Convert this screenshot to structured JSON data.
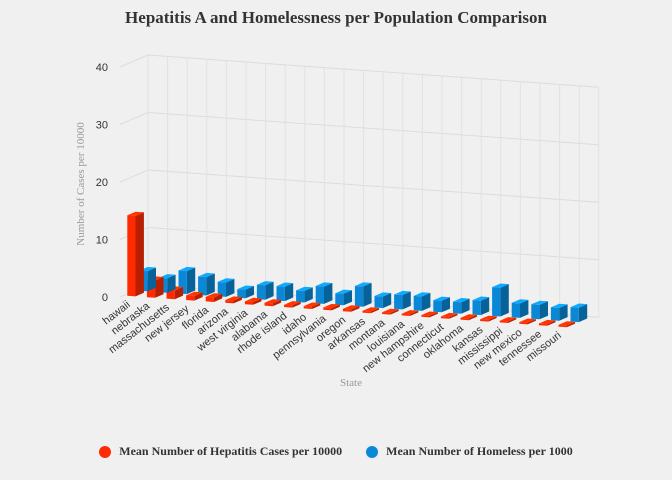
{
  "chart_data": {
    "type": "bar",
    "title": "Hepatitis A and Homelessness per Population Comparison",
    "xlabel": "State",
    "ylabel": "Number of Cases per 10000",
    "ylim": [
      0,
      40
    ],
    "yticks": [
      0,
      10,
      20,
      30,
      40
    ],
    "categories": [
      "hawaii",
      "nebraska",
      "massachusetts",
      "new jersey",
      "florida",
      "arizona",
      "west virginia",
      "alabama",
      "rhode island",
      "idaho",
      "pennsylvania",
      "oregon",
      "arkansas",
      "montana",
      "louisiana",
      "new hampshire",
      "connecticut",
      "oklahoma",
      "kansas",
      "mississippi",
      "new mexico",
      "tennessee",
      "missouri"
    ],
    "label_every": 1,
    "series": [
      {
        "name": "Mean Number of Hepatitis Cases per 10000",
        "color": "#ff2a00",
        "values": [
          14,
          3,
          1.5,
          0.8,
          0.8,
          0.5,
          0.5,
          0.5,
          0.4,
          0.4,
          0.4,
          0.4,
          0.3,
          0.3,
          0.3,
          0.3,
          0.3,
          0.3,
          0.3,
          0.3,
          0.3,
          0.3,
          0.3
        ]
      },
      {
        "name": "Mean Number of Homeless per 1000",
        "color": "#0a88d6",
        "values": [
          3.5,
          2.5,
          4,
          3.2,
          2.5,
          1.5,
          2.5,
          2.5,
          2,
          3,
          2,
          3.5,
          2,
          2.5,
          2.5,
          2,
          2,
          2.5,
          5,
          2.5,
          2.5,
          2.2,
          2.5
        ]
      }
    ],
    "legend_position": "bottom"
  }
}
